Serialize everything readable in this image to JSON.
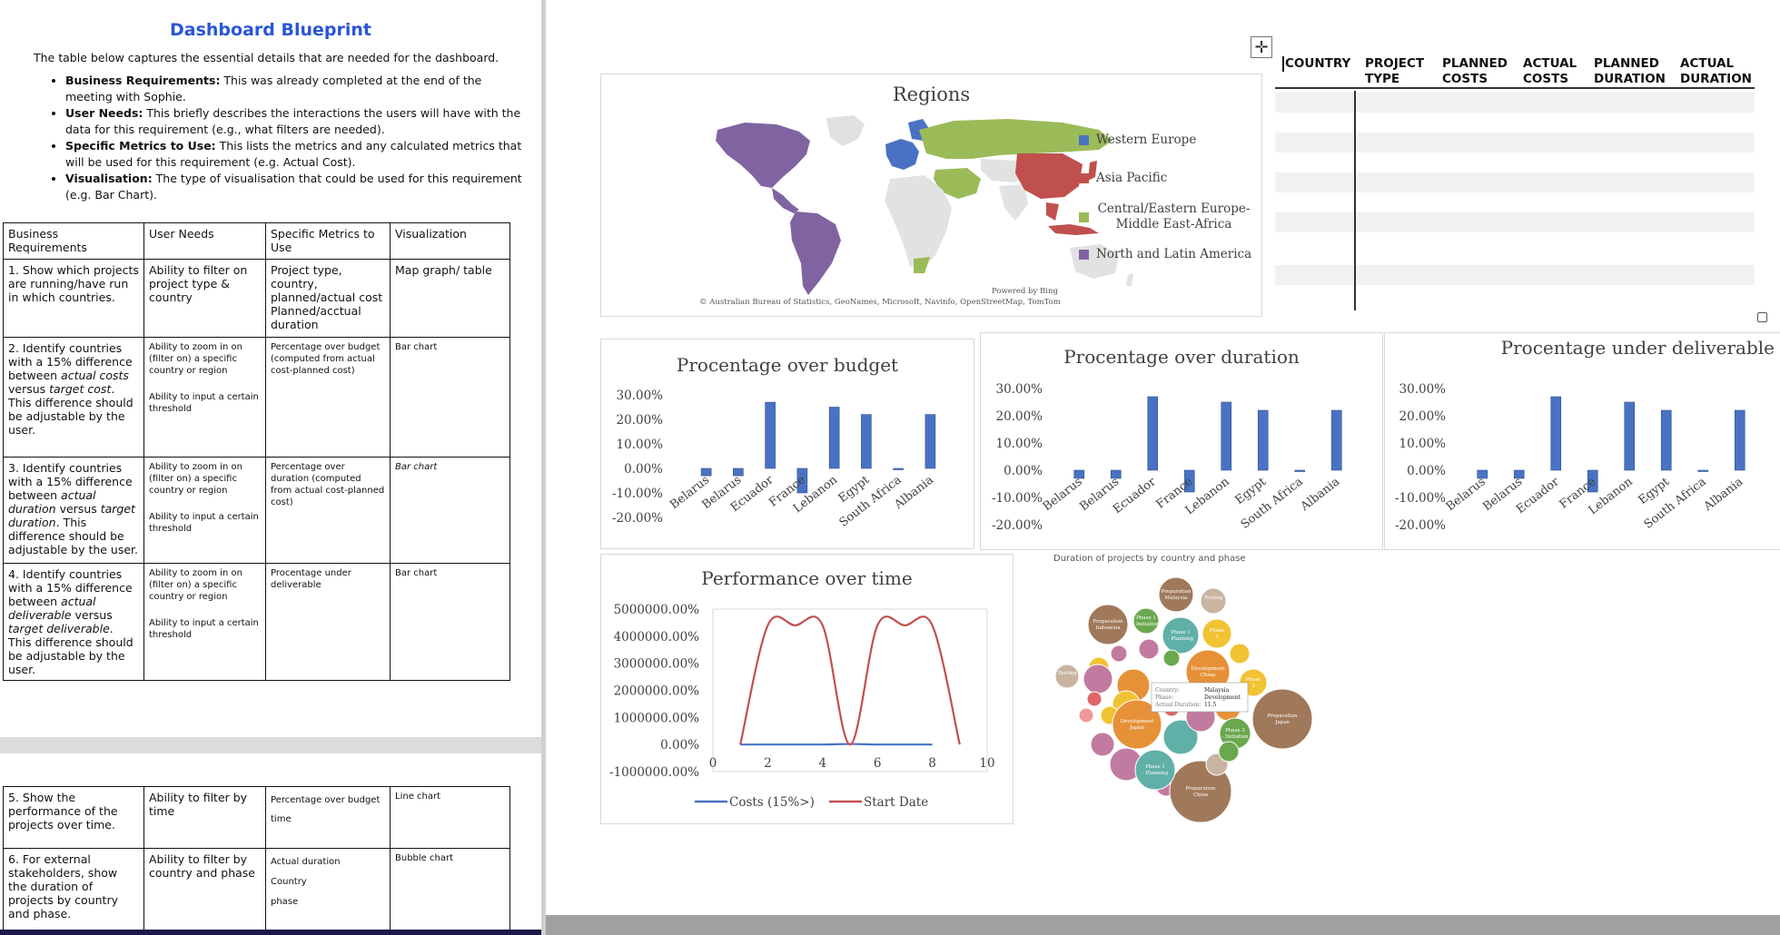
{
  "document": {
    "title": "Dashboard Blueprint",
    "intro": "The table below captures the essential details that are needed for the dashboard.",
    "bullets": [
      {
        "term": "Business Requirements:",
        "text": " This was already completed at the end of the meeting with Sophie."
      },
      {
        "term": "User Needs:",
        "text": " This briefly describes the interactions the users will have with the data for this requirement (e.g., what filters are needed)."
      },
      {
        "term": "Specific Metrics to Use:",
        "text": " This lists the metrics and any calculated metrics that will be used for this requirement (e.g. Actual Cost)."
      },
      {
        "term": "Visualisation:",
        "text": " The type of visualisation that could be used for this requirement (e.g. Bar Chart)."
      }
    ],
    "table_headers": [
      "Business Requirements",
      "User Needs",
      "Specific Metrics to Use",
      "Visualization"
    ],
    "rows": [
      {
        "req": "1. Show which projects are running/have run in which countries.",
        "needs": "Ability to filter on project type & country",
        "metrics": "Project type, country, planned/actual cost Planned/acctual duration",
        "vis": "Map graph/ table"
      },
      {
        "req_parts": [
          {
            "t": "2. Identify countries with a 15% difference between ",
            "i": false
          },
          {
            "t": "actual costs",
            "i": true
          },
          {
            "t": " versus ",
            "i": false
          },
          {
            "t": "target cost",
            "i": true
          },
          {
            "t": ". This difference should be adjustable by the user.",
            "i": false
          }
        ],
        "needs_p": [
          "Ability to zoom in on (filter on) a specific country or region",
          "Ability to input a certain threshold"
        ],
        "metrics": "Percentage over budget (computed from actual cost-planned cost)",
        "vis": "Bar chart"
      },
      {
        "req_parts": [
          {
            "t": "3. Identify countries with a 15% difference between ",
            "i": false
          },
          {
            "t": "actual duration",
            "i": true
          },
          {
            "t": " versus ",
            "i": false
          },
          {
            "t": "target duration",
            "i": true
          },
          {
            "t": ". This difference should be adjustable by the user.",
            "i": false
          }
        ],
        "needs_p": [
          "Ability to zoom in on (filter on) a specific country or region",
          "Ability to input a certain threshold"
        ],
        "metrics": "Percentage over duration (computed from actual cost-planned cost)",
        "vis": "Bar chart"
      },
      {
        "req_parts": [
          {
            "t": "4. Identify countries with a 15% difference between ",
            "i": false
          },
          {
            "t": "actual deliverable",
            "i": true
          },
          {
            "t": " versus ",
            "i": false
          },
          {
            "t": "target deliverable",
            "i": true
          },
          {
            "t": ". This difference should be adjustable by the user.",
            "i": false
          }
        ],
        "needs_p": [
          "Ability to zoom in on (filter on) a specific country or region",
          "Ability to input a certain threshold"
        ],
        "metrics": "Procentage under deliverable",
        "vis": "Bar chart"
      },
      {
        "req": "5. Show the performance of the projects over time.",
        "needs": "Ability to filter by time",
        "metrics_p": [
          "Percentage over budget",
          "time"
        ],
        "vis": "Line chart"
      },
      {
        "req": "6. For external stakeholders, show the duration of projects by country and phase.",
        "needs": "Ability to filter by country and phase",
        "metrics_p": [
          "Actual duration",
          "Country",
          "phase"
        ],
        "vis": "Bubble chart"
      }
    ]
  },
  "map": {
    "title": "Regions",
    "legend": [
      {
        "label": "Western Europe",
        "color": "#4a72c4"
      },
      {
        "label": "Asia Pacific",
        "color": "#c0504d"
      },
      {
        "label": "Central/Eastern Europe-Middle East-Africa",
        "color": "#9bbb59"
      },
      {
        "label": "North and Latin America",
        "color": "#8064a2"
      }
    ],
    "powered_by": "Powered by Bing",
    "attribution": "© Australian Bureau of Statistics, GeoNames, Microsoft, Navinfo, OpenStreetMap, TomTom"
  },
  "data_table": {
    "headers": [
      [
        "COUNTRY"
      ],
      [
        "PROJECT",
        "TYPE"
      ],
      [
        "PLANNED",
        "COSTS"
      ],
      [
        "ACTUAL",
        "COSTS"
      ],
      [
        "PLANNED",
        "DURATION"
      ],
      [
        "ACTUAL",
        "DURATION"
      ]
    ]
  },
  "chart_data": [
    {
      "type": "bar",
      "title": "Procentage over budget",
      "categories": [
        "Belarus",
        "Belarus",
        "Ecuador",
        "France",
        "Lebanon",
        "Egypt",
        "South Africa",
        "Albania"
      ],
      "values": [
        -0.03,
        -0.03,
        0.27,
        -0.1,
        0.25,
        0.22,
        -0.005,
        0.22
      ],
      "yticks": [
        "-20.00%",
        "-10.00%",
        "0.00%",
        "10.00%",
        "20.00%",
        "30.00%"
      ],
      "ylim": [
        -0.2,
        0.3
      ],
      "color": "#4a72c4"
    },
    {
      "type": "bar",
      "title": "Procentage over duration",
      "categories": [
        "Belarus",
        "Belarus",
        "Ecuador",
        "France",
        "Lebanon",
        "Egypt",
        "South Africa",
        "Albania"
      ],
      "values": [
        -0.03,
        -0.03,
        0.27,
        -0.08,
        0.25,
        0.22,
        -0.005,
        0.22
      ],
      "yticks": [
        "-20.00%",
        "-10.00%",
        "0.00%",
        "10.00%",
        "20.00%",
        "30.00%"
      ],
      "ylim": [
        -0.2,
        0.3
      ],
      "color": "#4a72c4"
    },
    {
      "type": "bar",
      "title": "Procentage under deliverable",
      "categories": [
        "Belarus",
        "Belarus",
        "Ecuador",
        "France",
        "Lebanon",
        "Egypt",
        "South Africa",
        "Albania"
      ],
      "values": [
        -0.03,
        -0.03,
        0.27,
        -0.08,
        0.25,
        0.22,
        -0.005,
        0.22
      ],
      "yticks": [
        "-20.00%",
        "-10.00%",
        "0.00%",
        "10.00%",
        "20.00%",
        "30.00%"
      ],
      "ylim": [
        -0.2,
        0.3
      ],
      "color": "#4a72c4"
    },
    {
      "type": "line",
      "title": "Performance over time",
      "xticks": [
        "0",
        "2",
        "4",
        "6",
        "8",
        "10"
      ],
      "yticks": [
        "-1000000.00%",
        "0.00%",
        "1000000.00%",
        "2000000.00%",
        "3000000.00%",
        "4000000.00%",
        "5000000.00%"
      ],
      "xlim": [
        0,
        10
      ],
      "ylim": [
        -10000,
        50000
      ],
      "series": [
        {
          "name": "Costs (15%>)",
          "color": "#4a72c4",
          "x": [
            1,
            2,
            3,
            4,
            5,
            6,
            7,
            8
          ],
          "y": [
            0,
            0,
            0,
            0,
            200,
            0,
            0,
            0
          ]
        },
        {
          "name": "Start Date",
          "color": "#c0504d",
          "x": [
            1,
            2,
            3,
            4,
            5,
            6,
            7,
            8,
            9
          ],
          "y": [
            0,
            44000,
            44000,
            44000,
            0,
            44000,
            44000,
            44000,
            0
          ]
        }
      ]
    },
    {
      "type": "bubble",
      "title": "Duration of projects by country and phase",
      "labels": [
        "Preparation Malaysia",
        "Testing",
        "Preparation Indonesia",
        "Phase 1 - Initiation",
        "Phase 1 - Planning",
        "Phase 3",
        "Development China",
        "Testing",
        "Phase 3",
        "Preparation Japan",
        "Development Japan",
        "Phase 2 - Initiation",
        "Phase 1 - Planning",
        "Preparation China"
      ],
      "tooltip": [
        "Country:",
        "Malaysia",
        "Phase:",
        "Development",
        "Actual Duration:",
        "11.5"
      ]
    }
  ]
}
